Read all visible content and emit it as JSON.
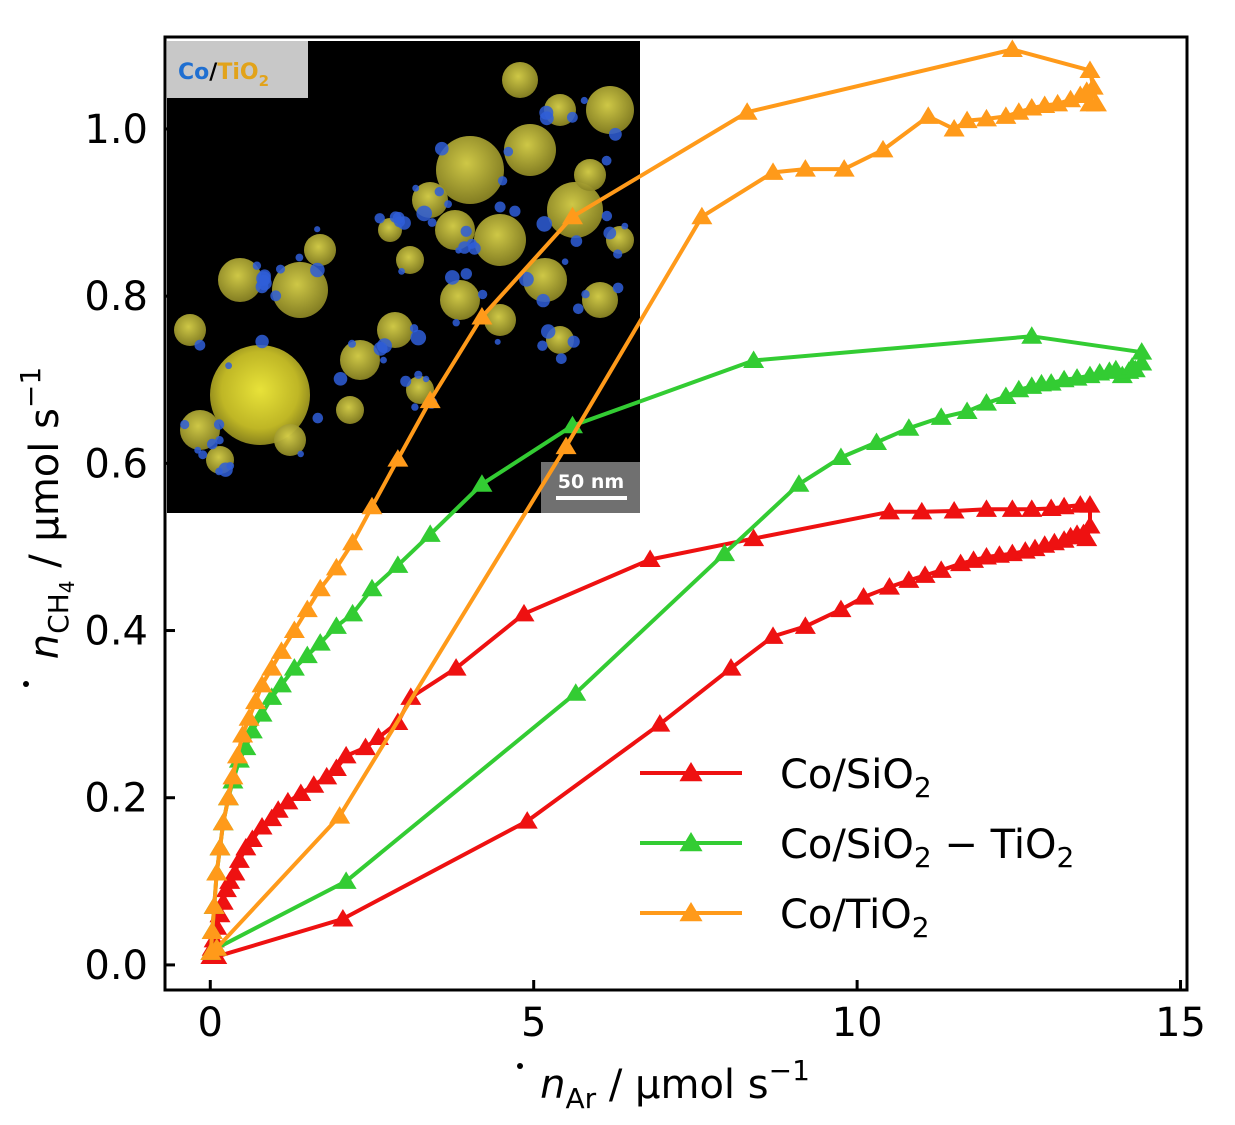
{
  "chart_data": {
    "type": "line",
    "xlim": [
      -0.7,
      15.1
    ],
    "ylim": [
      -0.03,
      1.11
    ],
    "x_ticks": [
      0,
      5,
      10,
      15
    ],
    "y_ticks": [
      0.0,
      0.2,
      0.4,
      0.6,
      0.8,
      1.0
    ],
    "x_tick_labels": [
      "0",
      "5",
      "10",
      "15"
    ],
    "y_tick_labels": [
      "0.0",
      "0.2",
      "0.4",
      "0.6",
      "0.8",
      "1.0"
    ],
    "xlabel": {
      "symbol": "n",
      "subscript": "Ar",
      "unit": " / µmol s",
      "exponent": "−1"
    },
    "ylabel": {
      "symbol": "n",
      "subscript": "CH",
      "subscript2": "4",
      "unit": " / µmol s",
      "exponent": "−1"
    },
    "legend_position": "lower-right",
    "series": [
      {
        "name": "Co/SiO2",
        "legend_main": "Co/SiO",
        "legend_sub": "2",
        "legend_tail": "",
        "legend_sub2": "",
        "color": "#ee1111",
        "marker": "triangle",
        "x": [
          0.1,
          2.05,
          4.9,
          6.95,
          8.05,
          8.7,
          9.2,
          9.75,
          10.1,
          10.5,
          10.8,
          11.05,
          11.3,
          11.6,
          11.8,
          12.0,
          12.2,
          12.4,
          12.6,
          12.75,
          12.9,
          13.05,
          13.2,
          13.3,
          13.4,
          13.5,
          13.55,
          13.6,
          13.6,
          13.45,
          13.2,
          13.0,
          12.7,
          12.4,
          12.0,
          11.5,
          11.0,
          10.5,
          8.4,
          6.8,
          4.85,
          3.8,
          3.1,
          2.9,
          2.6,
          2.4,
          2.1,
          1.95,
          1.8,
          1.6,
          1.4,
          1.2,
          1.05,
          0.95,
          0.8,
          0.65,
          0.55,
          0.45,
          0.38,
          0.3,
          0.25,
          0.2,
          0.15,
          0.1,
          0.06,
          0.03,
          0.01
        ],
        "y": [
          0.01,
          0.055,
          0.172,
          0.288,
          0.355,
          0.393,
          0.405,
          0.425,
          0.44,
          0.452,
          0.46,
          0.466,
          0.472,
          0.48,
          0.484,
          0.488,
          0.49,
          0.492,
          0.495,
          0.498,
          0.502,
          0.505,
          0.508,
          0.512,
          0.515,
          0.516,
          0.51,
          0.525,
          0.55,
          0.55,
          0.548,
          0.546,
          0.545,
          0.545,
          0.545,
          0.543,
          0.542,
          0.542,
          0.51,
          0.485,
          0.42,
          0.355,
          0.32,
          0.29,
          0.272,
          0.26,
          0.25,
          0.235,
          0.225,
          0.215,
          0.205,
          0.195,
          0.185,
          0.175,
          0.165,
          0.15,
          0.14,
          0.125,
          0.11,
          0.1,
          0.09,
          0.075,
          0.06,
          0.045,
          0.03,
          0.02,
          0.01
        ]
      },
      {
        "name": "Co/SiO2 − TiO2",
        "legend_main": "Co/SiO",
        "legend_sub": "2",
        "legend_tail": " − TiO",
        "legend_sub2": "2",
        "color": "#33cc33",
        "marker": "triangle",
        "x": [
          0.1,
          2.1,
          5.65,
          7.95,
          9.1,
          9.75,
          10.3,
          10.8,
          11.3,
          11.7,
          12.0,
          12.3,
          12.5,
          12.7,
          12.85,
          13.0,
          13.2,
          13.4,
          13.6,
          13.75,
          13.9,
          14.0,
          14.1,
          14.2,
          14.25,
          14.3,
          14.4,
          14.4,
          12.7,
          8.4,
          5.6,
          4.2,
          3.4,
          2.9,
          2.5,
          2.2,
          1.95,
          1.7,
          1.5,
          1.3,
          1.1,
          0.95,
          0.8,
          0.65,
          0.55,
          0.45,
          0.35,
          0.28,
          0.2,
          0.15,
          0.1,
          0.06,
          0.03,
          0.01
        ],
        "y": [
          0.02,
          0.1,
          0.325,
          0.492,
          0.575,
          0.607,
          0.625,
          0.642,
          0.655,
          0.662,
          0.672,
          0.68,
          0.688,
          0.692,
          0.695,
          0.696,
          0.7,
          0.702,
          0.705,
          0.708,
          0.71,
          0.712,
          0.705,
          0.71,
          0.715,
          0.712,
          0.72,
          0.733,
          0.752,
          0.723,
          0.645,
          0.575,
          0.515,
          0.478,
          0.45,
          0.42,
          0.405,
          0.385,
          0.37,
          0.355,
          0.335,
          0.32,
          0.3,
          0.28,
          0.26,
          0.245,
          0.22,
          0.2,
          0.17,
          0.14,
          0.11,
          0.07,
          0.04,
          0.015
        ]
      },
      {
        "name": "Co/TiO2",
        "legend_main": "Co/TiO",
        "legend_sub": "2",
        "legend_tail": "",
        "legend_sub2": "",
        "color": "#ff9a1a",
        "marker": "triangle",
        "x": [
          0.1,
          2.0,
          5.5,
          7.6,
          8.7,
          9.2,
          9.8,
          10.4,
          11.1,
          11.5,
          11.7,
          12.0,
          12.3,
          12.5,
          12.7,
          12.9,
          13.1,
          13.3,
          13.45,
          13.55,
          13.6,
          13.65,
          13.7,
          13.6,
          12.4,
          8.3,
          5.6,
          4.2,
          3.4,
          2.9,
          2.5,
          2.2,
          1.95,
          1.7,
          1.5,
          1.3,
          1.1,
          0.95,
          0.8,
          0.7,
          0.6,
          0.5,
          0.42,
          0.35,
          0.28,
          0.2,
          0.15,
          0.1,
          0.06,
          0.03,
          0.01
        ],
        "y": [
          0.02,
          0.178,
          0.62,
          0.895,
          0.948,
          0.952,
          0.952,
          0.975,
          1.015,
          1.0,
          1.01,
          1.012,
          1.015,
          1.02,
          1.025,
          1.028,
          1.03,
          1.035,
          1.04,
          1.045,
          1.03,
          1.05,
          1.03,
          1.07,
          1.095,
          1.02,
          0.895,
          0.775,
          0.675,
          0.605,
          0.548,
          0.505,
          0.475,
          0.45,
          0.425,
          0.4,
          0.375,
          0.355,
          0.335,
          0.315,
          0.295,
          0.275,
          0.25,
          0.225,
          0.2,
          0.17,
          0.14,
          0.11,
          0.07,
          0.04,
          0.015
        ]
      }
    ],
    "inset": {
      "title_part1": "Co",
      "title_part2": "/",
      "title_part3": "TiO",
      "title_sub": "2",
      "scale_bar_label": "50 nm"
    }
  }
}
